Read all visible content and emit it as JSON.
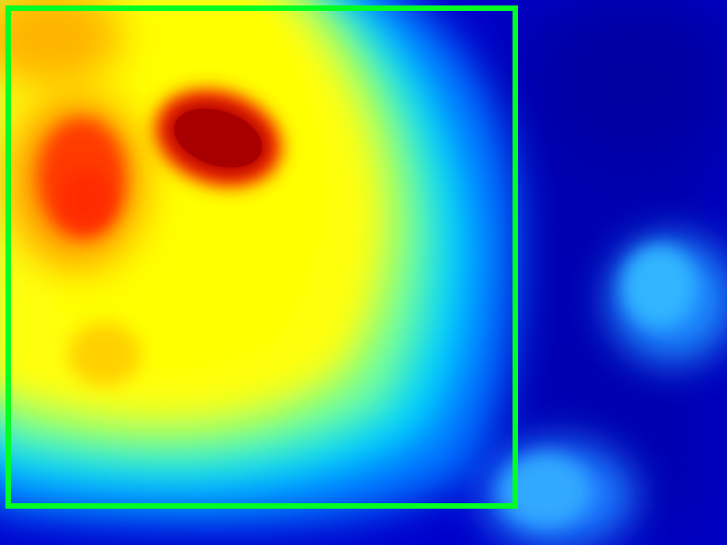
{
  "image": {
    "kind": "thermal-heatmap",
    "palette": "jet",
    "palette_colors": [
      "#00008a",
      "#0000d8",
      "#0060ff",
      "#00d8ff",
      "#40ffc0",
      "#c0ff40",
      "#ffff00",
      "#ffb000",
      "#ff4000",
      "#d00000",
      "#a00000"
    ]
  },
  "overlay": {
    "detection_box": {
      "color": "#00ff22",
      "label": ""
    }
  }
}
